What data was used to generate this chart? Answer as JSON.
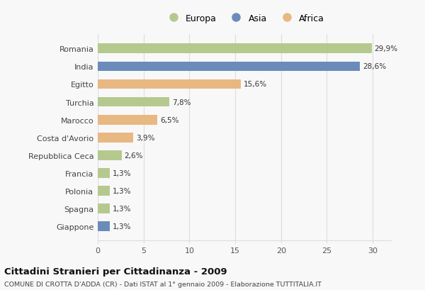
{
  "countries": [
    "Romania",
    "India",
    "Egitto",
    "Turchia",
    "Marocco",
    "Costa d'Avorio",
    "Repubblica Ceca",
    "Francia",
    "Polonia",
    "Spagna",
    "Giappone"
  ],
  "values": [
    29.9,
    28.6,
    15.6,
    7.8,
    6.5,
    3.9,
    2.6,
    1.3,
    1.3,
    1.3,
    1.3
  ],
  "labels": [
    "29,9%",
    "28,6%",
    "15,6%",
    "7,8%",
    "6,5%",
    "3,9%",
    "2,6%",
    "1,3%",
    "1,3%",
    "1,3%",
    "1,3%"
  ],
  "colors": [
    "#b5c98e",
    "#6b8cba",
    "#e8b882",
    "#b5c98e",
    "#e8b882",
    "#e8b882",
    "#b5c98e",
    "#b5c98e",
    "#b5c98e",
    "#b5c98e",
    "#6b8cba"
  ],
  "legend_labels": [
    "Europa",
    "Asia",
    "Africa"
  ],
  "legend_colors": [
    "#b5c98e",
    "#6b8cba",
    "#e8b882"
  ],
  "title": "Cittadini Stranieri per Cittadinanza - 2009",
  "subtitle": "COMUNE DI CROTTA D'ADDA (CR) - Dati ISTAT al 1° gennaio 2009 - Elaborazione TUTTITALIA.IT",
  "xlim": [
    0,
    32
  ],
  "xticks": [
    0,
    5,
    10,
    15,
    20,
    25,
    30
  ],
  "bg_color": "#f8f8f8",
  "grid_color": "#dddddd",
  "bar_height": 0.55
}
